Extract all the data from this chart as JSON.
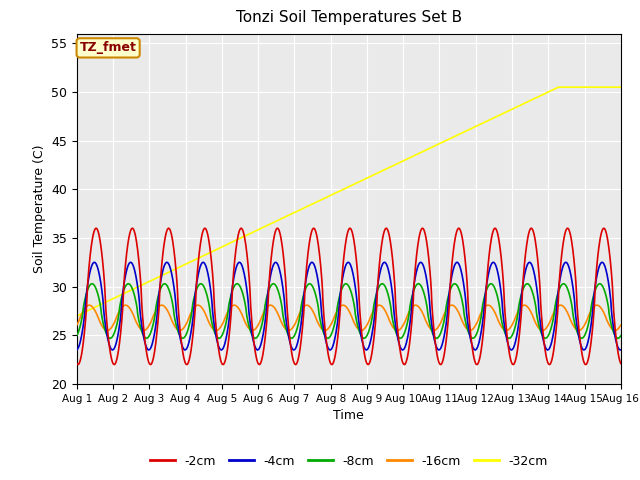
{
  "title": "Tonzi Soil Temperatures Set B",
  "xlabel": "Time",
  "ylabel": "Soil Temperature (C)",
  "ylim": [
    20,
    56
  ],
  "xlim": [
    0,
    15
  ],
  "yticks": [
    20,
    25,
    30,
    35,
    40,
    45,
    50,
    55
  ],
  "xtick_labels": [
    "Aug 1",
    "Aug 2",
    "Aug 3",
    "Aug 4",
    "Aug 5",
    "Aug 6",
    "Aug 7",
    "Aug 8",
    "Aug 9",
    "Aug 10",
    "Aug 11",
    "Aug 12",
    "Aug 13",
    "Aug 14",
    "Aug 15",
    "Aug 16"
  ],
  "series_colors": [
    "#dd0000",
    "#0000cc",
    "#00aa00",
    "#ff8800",
    "#ffff00"
  ],
  "series_labels": [
    "-2cm",
    "-4cm",
    "-8cm",
    "-16cm",
    "-32cm"
  ],
  "annotation_text": "TZ_fmet",
  "annotation_bg": "#ffffcc",
  "annotation_border": "#cc8800",
  "annotation_fg": "#880000",
  "background_color": "#eaeaea"
}
